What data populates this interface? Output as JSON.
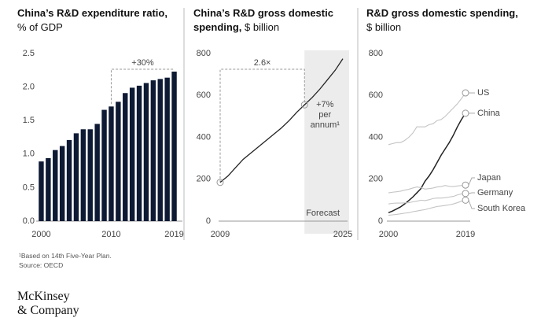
{
  "chart_data": [
    {
      "type": "bar",
      "title": "China’s R&D expenditure ratio,",
      "subtitle": "% of GDP",
      "categories": [
        "2000",
        null,
        null,
        null,
        null,
        null,
        null,
        null,
        null,
        null,
        "2010",
        null,
        null,
        null,
        null,
        null,
        null,
        null,
        null,
        "2019"
      ],
      "values": [
        0.89,
        0.94,
        1.06,
        1.12,
        1.21,
        1.31,
        1.37,
        1.37,
        1.45,
        1.66,
        1.71,
        1.78,
        1.91,
        1.99,
        2.02,
        2.06,
        2.1,
        2.12,
        2.14,
        2.23
      ],
      "color": "#0e1a33",
      "ylim": [
        0,
        2.5
      ],
      "yticks": [
        {
          "value": 0,
          "label": "0.0"
        },
        0.5,
        {
          "value": 1,
          "label": "1.0"
        },
        1.5,
        {
          "value": 2,
          "label": "2.0"
        },
        2.5
      ],
      "annotation": "+30%"
    },
    {
      "type": "line",
      "title": "China’s R&D gross domestic spending,",
      "subtitle": "$ billion",
      "x": [
        2009,
        2010,
        2011,
        2012,
        2013,
        2014,
        2015,
        2016,
        2017,
        2018,
        2019,
        2020,
        2021,
        2022,
        2023,
        2024,
        2025
      ],
      "values": [
        185,
        215,
        255,
        295,
        325,
        355,
        385,
        415,
        445,
        480,
        520,
        555,
        590,
        630,
        675,
        720,
        775
      ],
      "color": "#222222",
      "xlim": [
        2009,
        2025
      ],
      "xticks": [
        2009,
        2025
      ],
      "ylim": [
        0,
        800
      ],
      "yticks": [
        0,
        200,
        400,
        600,
        800
      ],
      "forecast_start": 2020,
      "annotations": {
        "multiple": "2.6×",
        "growth": [
          "+7%",
          "per",
          "annum¹"
        ],
        "forecast": "Forecast"
      }
    },
    {
      "type": "line",
      "title": "R&D gross domestic spending,",
      "subtitle": "$ billion",
      "x": [
        2000,
        2001,
        2002,
        2003,
        2004,
        2005,
        2006,
        2007,
        2008,
        2009,
        2010,
        2011,
        2012,
        2013,
        2014,
        2015,
        2016,
        2017,
        2018,
        2019
      ],
      "xlim": [
        2000,
        2019
      ],
      "xticks": [
        2000,
        2019
      ],
      "ylim": [
        0,
        800
      ],
      "yticks": [
        0,
        200,
        400,
        600,
        800
      ],
      "series": [
        {
          "name": "US",
          "color": "#c4c4c4",
          "values": [
            365,
            370,
            375,
            375,
            385,
            400,
            420,
            450,
            450,
            450,
            460,
            465,
            480,
            485,
            500,
            520,
            540,
            560,
            585,
            612
          ]
        },
        {
          "name": "China",
          "color": "#222222",
          "values": [
            40,
            48,
            58,
            68,
            82,
            98,
            115,
            135,
            155,
            190,
            215,
            245,
            280,
            315,
            345,
            375,
            410,
            450,
            485,
            515
          ]
        },
        {
          "name": "Japan",
          "color": "#c4c4c4",
          "values": [
            135,
            138,
            140,
            143,
            148,
            152,
            158,
            163,
            160,
            153,
            155,
            158,
            163,
            165,
            170,
            166,
            165,
            168,
            170,
            172
          ]
        },
        {
          "name": "Germany",
          "color": "#c4c4c4",
          "values": [
            82,
            85,
            86,
            86,
            87,
            88,
            92,
            95,
            100,
            98,
            102,
            108,
            110,
            110,
            112,
            115,
            118,
            125,
            130,
            132
          ]
        },
        {
          "name": "South Korea",
          "color": "#c4c4c4",
          "values": [
            28,
            30,
            32,
            35,
            38,
            40,
            45,
            48,
            52,
            55,
            60,
            65,
            70,
            72,
            75,
            78,
            82,
            88,
            95,
            100
          ]
        }
      ]
    }
  ],
  "footnote": "¹Based on 14th Five-Year Plan.",
  "source": "Source: OECD",
  "logo": [
    "McKinsey",
    "& Company"
  ]
}
